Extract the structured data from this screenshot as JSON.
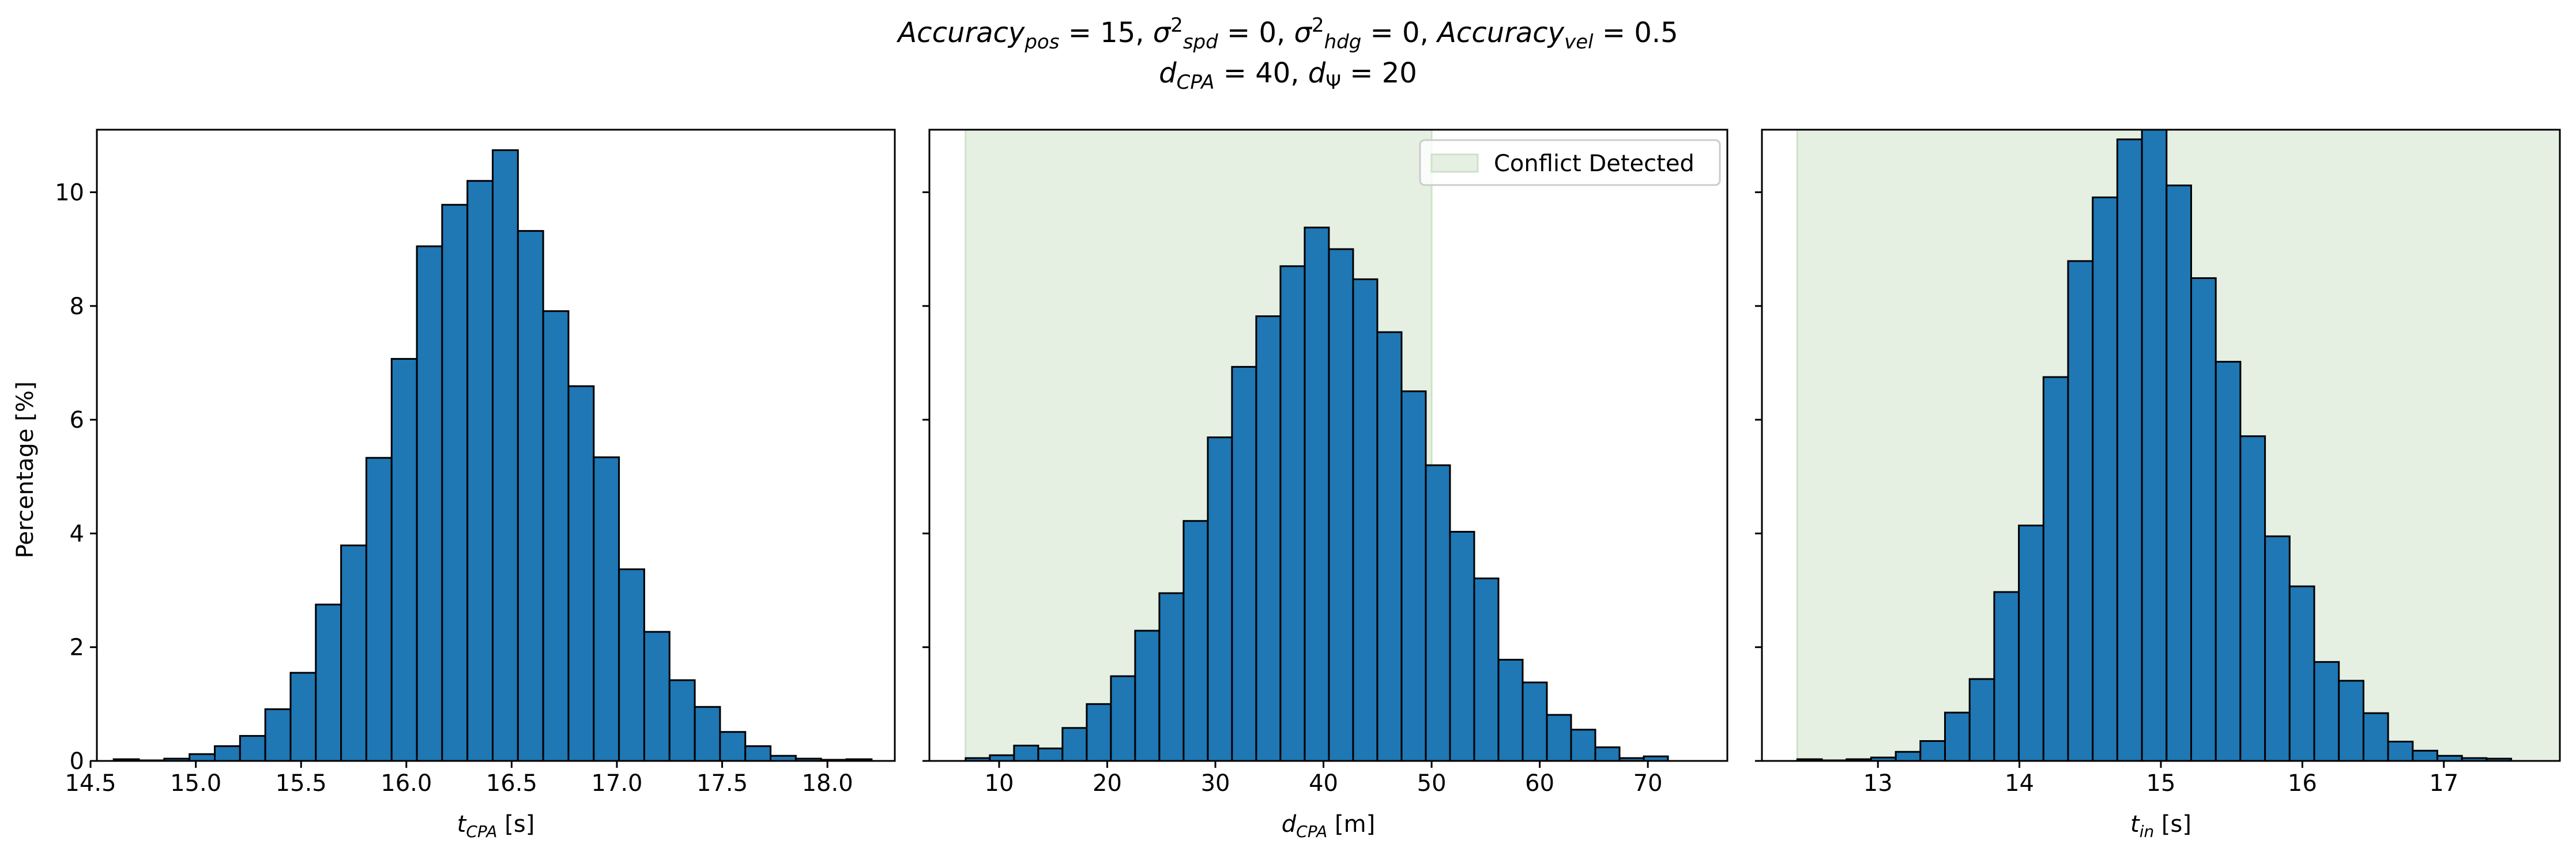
{
  "title": {
    "line1": [
      {
        "text": "Accuracy",
        "style": "italic"
      },
      {
        "text": "pos",
        "style": "italic-sub"
      },
      {
        "text": " = 15, ",
        "style": "normal"
      },
      {
        "text": "σ",
        "style": "italic"
      },
      {
        "text": "2",
        "style": "sup"
      },
      {
        "text": "spd",
        "style": "italic-sub"
      },
      {
        "text": " = 0, ",
        "style": "normal"
      },
      {
        "text": "σ",
        "style": "italic"
      },
      {
        "text": "2",
        "style": "sup"
      },
      {
        "text": "hdg",
        "style": "italic-sub"
      },
      {
        "text": " = 0, ",
        "style": "normal"
      },
      {
        "text": "Accuracy",
        "style": "italic"
      },
      {
        "text": "vel",
        "style": "italic-sub"
      },
      {
        "text": " = 0.5",
        "style": "normal"
      }
    ],
    "line2": [
      {
        "text": "d",
        "style": "italic"
      },
      {
        "text": "CPA",
        "style": "italic-sub"
      },
      {
        "text": " = 40, ",
        "style": "normal"
      },
      {
        "text": "d",
        "style": "italic"
      },
      {
        "text": "Ψ",
        "style": "sub"
      },
      {
        "text": " = 20",
        "style": "normal"
      }
    ]
  },
  "ylabel": "Percentage [%]",
  "yticks": [
    0,
    2,
    4,
    6,
    8,
    10
  ],
  "ylim": [
    0,
    11.1
  ],
  "colors": {
    "bar_fill": "#1f77b4",
    "bar_edge": "#000000",
    "conflict_fill": "#e5f0e3",
    "conflict_edge": "#cde2c8"
  },
  "legend": {
    "label": "Conflict Detected",
    "position": "upper right"
  },
  "chart_data": [
    {
      "type": "bar",
      "subtype": "histogram",
      "xlabel_parts": [
        {
          "text": "t",
          "style": "italic"
        },
        {
          "text": "CPA",
          "style": "italic-sub"
        },
        {
          "text": " [s]",
          "style": "normal"
        }
      ],
      "xlim": [
        14.53,
        18.32
      ],
      "xticks": [
        "14.5",
        "15.0",
        "15.5",
        "16.0",
        "16.5",
        "17.0",
        "17.5",
        "18.0"
      ],
      "bin_start": 14.61,
      "bin_width": 0.12,
      "values": [
        0.03,
        0.01,
        0.04,
        0.12,
        0.26,
        0.44,
        0.91,
        1.55,
        2.75,
        3.79,
        5.33,
        7.07,
        9.05,
        9.78,
        10.2,
        10.74,
        9.32,
        7.91,
        6.59,
        5.34,
        3.37,
        2.27,
        1.42,
        0.95,
        0.51,
        0.26,
        0.09,
        0.04,
        0.02,
        0.03
      ],
      "conflict_region": null
    },
    {
      "type": "bar",
      "subtype": "histogram",
      "xlabel_parts": [
        {
          "text": "d",
          "style": "italic"
        },
        {
          "text": "CPA",
          "style": "italic-sub"
        },
        {
          "text": " [m]",
          "style": "normal"
        }
      ],
      "xlim": [
        3.55,
        77.35
      ],
      "xticks": [
        "10",
        "20",
        "30",
        "40",
        "50",
        "60",
        "70"
      ],
      "bin_start": 6.9,
      "bin_width": 2.24,
      "values": [
        0.05,
        0.1,
        0.27,
        0.22,
        0.58,
        1.0,
        1.49,
        2.29,
        2.95,
        4.22,
        5.69,
        6.93,
        7.82,
        8.7,
        9.38,
        9.0,
        8.47,
        7.54,
        6.5,
        5.2,
        4.03,
        3.21,
        1.78,
        1.38,
        0.81,
        0.55,
        0.24,
        0.05,
        0.08
      ],
      "conflict_region": [
        6.9,
        50
      ]
    },
    {
      "type": "bar",
      "subtype": "histogram",
      "xlabel_parts": [
        {
          "text": "t",
          "style": "italic"
        },
        {
          "text": "in",
          "style": "italic-sub"
        },
        {
          "text": " [s]",
          "style": "normal"
        }
      ],
      "xlim": [
        12.18,
        17.82
      ],
      "xticks": [
        "13",
        "14",
        "15",
        "16",
        "17"
      ],
      "bin_start": 12.43,
      "bin_width": 0.174,
      "values": [
        0.03,
        0.01,
        0.03,
        0.06,
        0.16,
        0.35,
        0.85,
        1.44,
        2.97,
        4.14,
        6.75,
        8.79,
        9.91,
        10.93,
        11.14,
        10.12,
        8.49,
        7.02,
        5.71,
        3.95,
        3.07,
        1.74,
        1.41,
        0.84,
        0.34,
        0.18,
        0.09,
        0.05,
        0.04
      ],
      "conflict_region": [
        12.43,
        17.82
      ]
    }
  ]
}
